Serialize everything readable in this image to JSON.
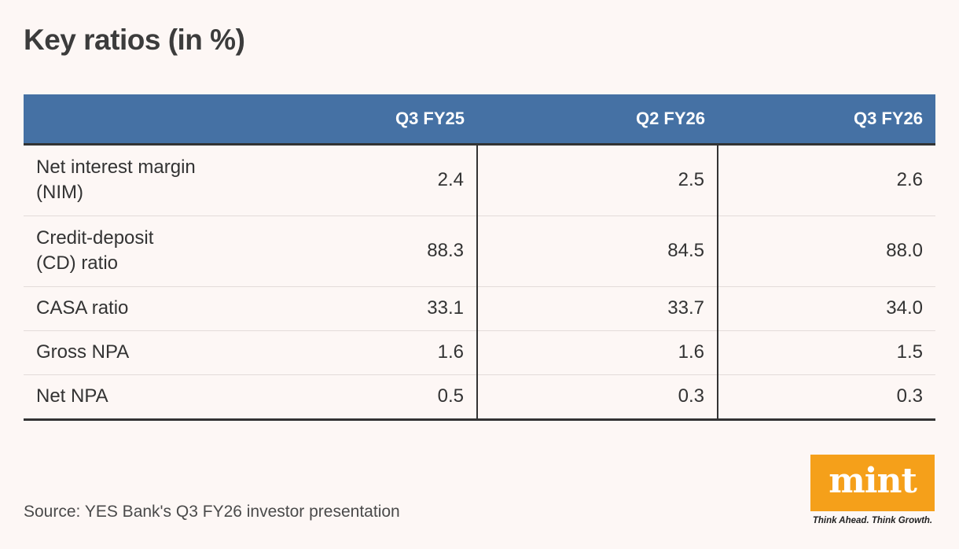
{
  "title": "Key ratios (in %)",
  "chart_data": {
    "type": "table",
    "title": "Key ratios (in %)",
    "columns": [
      "",
      "Q3 FY25",
      "Q2 FY26",
      "Q3 FY26"
    ],
    "rows": [
      {
        "label": [
          "Net interest margin",
          "(NIM)"
        ],
        "values": [
          "2.4",
          "2.5",
          "2.6"
        ]
      },
      {
        "label": [
          "Credit-deposit",
          "(CD) ratio"
        ],
        "values": [
          "88.3",
          "84.5",
          "88.0"
        ]
      },
      {
        "label": [
          "CASA ratio"
        ],
        "values": [
          "33.1",
          "33.7",
          "34.0"
        ]
      },
      {
        "label": [
          "Gross NPA"
        ],
        "values": [
          "1.6",
          "1.6",
          "1.5"
        ]
      },
      {
        "label": [
          "Net NPA"
        ],
        "values": [
          "0.5",
          "0.3",
          "0.3"
        ]
      }
    ]
  },
  "source": "Source: YES Bank's Q3 FY26 investor presentation",
  "logo": {
    "text": "mint",
    "tagline": "Think Ahead. Think Growth.",
    "color": "#f5a01a"
  },
  "colors": {
    "header_bg": "#4571a4",
    "background": "#fdf7f5"
  }
}
